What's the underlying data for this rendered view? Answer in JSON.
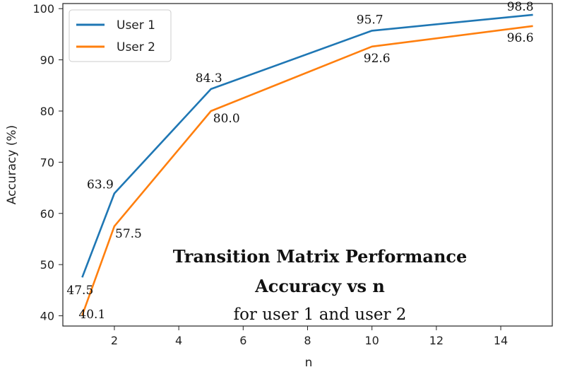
{
  "chart_data": {
    "type": "line",
    "title": "Transition Matrix Performance",
    "subtitle": "Accuracy vs n",
    "subtitle2": "for user 1 and user 2",
    "xlabel": "n",
    "ylabel": "Accuracy (%)",
    "xlim": [
      0.4,
      15.6
    ],
    "ylim": [
      38,
      101
    ],
    "xticks": [
      2,
      4,
      6,
      8,
      10,
      12,
      14
    ],
    "yticks": [
      40,
      50,
      60,
      70,
      80,
      90,
      100
    ],
    "x": [
      1,
      2,
      5,
      10,
      15
    ],
    "series": [
      {
        "name": "User 1",
        "color": "#1f77b4",
        "values": [
          47.5,
          63.9,
          84.3,
          95.7,
          98.8
        ]
      },
      {
        "name": "User 2",
        "color": "#ff7f0e",
        "values": [
          40.1,
          57.5,
          80.0,
          92.6,
          96.6
        ]
      }
    ],
    "data_labels": {
      "User 1": [
        "47.5",
        "63.9",
        "84.3",
        "95.7",
        "98.8"
      ],
      "User 2": [
        "40.1",
        "57.5",
        "80.0",
        "92.6",
        "96.6"
      ]
    },
    "legend_position": "top-left",
    "grid": false
  }
}
